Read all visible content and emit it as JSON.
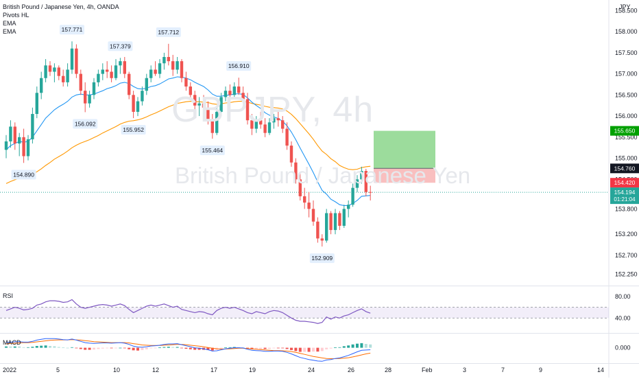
{
  "legend": {
    "title": "British Pound / Japanese Yen, 4h, OANDA",
    "indicators": [
      "Pivots HL",
      "EMA",
      "EMA"
    ]
  },
  "watermark": {
    "symbol": "GBPJPY, 4h",
    "description": "British Pound / Japanese Yen"
  },
  "symbol_badge": "JPY",
  "colors": {
    "up": "#26a69a",
    "down": "#ef5350",
    "ema_fast": "#2196f3",
    "ema_slow": "#ff9800",
    "rsi": "#7e57c2",
    "macd": "#2962ff",
    "signal": "#ff6d00",
    "target_zone": "#8bd68b",
    "stop_zone": "#f8b4b4"
  },
  "chart_data": {
    "type": "candlestick",
    "price_axis": {
      "ticks": [
        "158.500",
        "158.000",
        "157.500",
        "157.000",
        "156.500",
        "156.000",
        "155.500",
        "155.000",
        "154.500",
        "153.800",
        "153.200",
        "152.700",
        "152.250"
      ],
      "ylim": [
        152.0,
        158.75
      ]
    },
    "time_axis": {
      "labels": [
        "2022",
        "5",
        "10",
        "12",
        "17",
        "19",
        "24",
        "26",
        "28",
        "Feb",
        "3",
        "7",
        "9",
        "14"
      ]
    },
    "pivots": [
      {
        "label": "157.771",
        "type": "high"
      },
      {
        "label": "157.379",
        "type": "high"
      },
      {
        "label": "157.712",
        "type": "high"
      },
      {
        "label": "156.910",
        "type": "high"
      },
      {
        "label": "154.890",
        "type": "low"
      },
      {
        "label": "156.092",
        "type": "low"
      },
      {
        "label": "155.952",
        "type": "low"
      },
      {
        "label": "155.464",
        "type": "low"
      },
      {
        "label": "152.909",
        "type": "low"
      }
    ],
    "price_labels": [
      {
        "label": "155.650",
        "sub": "",
        "kind": "target",
        "color": "#00a000"
      },
      {
        "label": "154.760",
        "sub": "",
        "kind": "entry",
        "color": "#131722"
      },
      {
        "label": "154.420",
        "sub": "",
        "kind": "stop",
        "color": "#f23645"
      },
      {
        "label": "154.194",
        "sub": "01:21:04",
        "kind": "last",
        "color": "#26a69a"
      }
    ],
    "position": {
      "entry": 154.76,
      "target": 155.65,
      "stop": 154.42
    },
    "last_price": 154.194,
    "candles": [
      [
        155.2,
        155.55,
        155.0,
        155.4
      ],
      [
        155.4,
        155.9,
        155.25,
        155.75
      ],
      [
        155.75,
        155.85,
        155.2,
        155.35
      ],
      [
        155.35,
        155.6,
        155.05,
        155.5
      ],
      [
        155.5,
        155.7,
        154.89,
        155.05
      ],
      [
        155.05,
        155.55,
        154.95,
        155.45
      ],
      [
        155.45,
        156.2,
        155.35,
        156.05
      ],
      [
        156.05,
        156.7,
        155.95,
        156.55
      ],
      [
        156.55,
        157.05,
        156.4,
        156.9
      ],
      [
        156.9,
        157.35,
        156.8,
        157.2
      ],
      [
        157.2,
        157.3,
        156.95,
        157.05
      ],
      [
        157.05,
        157.25,
        156.8,
        157.15
      ],
      [
        157.15,
        157.2,
        156.85,
        156.95
      ],
      [
        156.95,
        157.1,
        156.7,
        156.8
      ],
      [
        156.8,
        157.25,
        156.7,
        157.1
      ],
      [
        157.1,
        157.771,
        157.0,
        157.6
      ],
      [
        157.6,
        157.7,
        156.9,
        157.0
      ],
      [
        157.0,
        157.1,
        156.5,
        156.6
      ],
      [
        156.6,
        156.8,
        156.092,
        156.3
      ],
      [
        156.3,
        156.6,
        156.2,
        156.5
      ],
      [
        156.5,
        156.9,
        156.4,
        156.8
      ],
      [
        156.8,
        157.1,
        156.7,
        157.0
      ],
      [
        157.0,
        157.25,
        156.85,
        157.1
      ],
      [
        157.1,
        157.3,
        156.9,
        157.05
      ],
      [
        157.05,
        157.2,
        156.8,
        156.9
      ],
      [
        156.9,
        157.35,
        156.85,
        157.2
      ],
      [
        157.2,
        157.379,
        157.0,
        157.3
      ],
      [
        157.3,
        157.4,
        156.9,
        157.0
      ],
      [
        157.0,
        157.05,
        156.4,
        156.5
      ],
      [
        156.5,
        156.6,
        155.952,
        156.1
      ],
      [
        156.1,
        156.45,
        156.0,
        156.35
      ],
      [
        156.35,
        156.7,
        156.25,
        156.6
      ],
      [
        156.6,
        157.0,
        156.5,
        156.9
      ],
      [
        156.9,
        157.2,
        156.8,
        157.1
      ],
      [
        157.1,
        157.3,
        156.95,
        157.0
      ],
      [
        157.0,
        157.35,
        156.9,
        157.25
      ],
      [
        157.25,
        157.5,
        157.1,
        157.4
      ],
      [
        157.4,
        157.712,
        157.2,
        157.3
      ],
      [
        157.3,
        157.45,
        156.95,
        157.1
      ],
      [
        157.1,
        157.4,
        157.0,
        157.3
      ],
      [
        157.3,
        157.35,
        156.8,
        156.9
      ],
      [
        156.9,
        157.05,
        156.6,
        156.7
      ],
      [
        156.7,
        156.8,
        156.4,
        156.5
      ],
      [
        156.5,
        156.6,
        156.1,
        156.25
      ],
      [
        156.25,
        156.45,
        156.0,
        156.3
      ],
      [
        156.3,
        156.5,
        156.05,
        156.2
      ],
      [
        156.2,
        156.35,
        155.8,
        155.9
      ],
      [
        155.9,
        156.05,
        155.464,
        155.6
      ],
      [
        155.6,
        156.2,
        155.55,
        156.1
      ],
      [
        156.1,
        156.55,
        156.0,
        156.45
      ],
      [
        156.45,
        156.7,
        156.35,
        156.6
      ],
      [
        156.6,
        156.75,
        156.4,
        156.5
      ],
      [
        156.5,
        156.8,
        156.45,
        156.7
      ],
      [
        156.7,
        156.91,
        156.5,
        156.55
      ],
      [
        156.55,
        156.7,
        156.3,
        156.4
      ],
      [
        156.4,
        156.55,
        155.8,
        155.9
      ],
      [
        155.9,
        156.05,
        155.55,
        155.7
      ],
      [
        155.7,
        156.0,
        155.6,
        155.9
      ],
      [
        155.9,
        156.1,
        155.7,
        155.8
      ],
      [
        155.8,
        155.95,
        155.5,
        155.6
      ],
      [
        155.6,
        155.95,
        155.55,
        155.85
      ],
      [
        155.85,
        156.05,
        155.7,
        155.95
      ],
      [
        155.95,
        156.1,
        155.75,
        155.9
      ],
      [
        155.9,
        156.0,
        155.6,
        155.7
      ],
      [
        155.7,
        155.85,
        155.2,
        155.3
      ],
      [
        155.3,
        155.4,
        154.8,
        154.9
      ],
      [
        154.9,
        155.0,
        154.4,
        154.5
      ],
      [
        154.5,
        154.65,
        154.0,
        154.1
      ],
      [
        154.1,
        154.3,
        153.8,
        153.95
      ],
      [
        153.95,
        154.2,
        153.6,
        153.8
      ],
      [
        153.8,
        154.0,
        153.4,
        153.5
      ],
      [
        153.5,
        153.6,
        153.0,
        153.1
      ],
      [
        153.1,
        153.2,
        152.909,
        153.05
      ],
      [
        153.05,
        153.8,
        153.0,
        153.7
      ],
      [
        153.7,
        153.75,
        153.2,
        153.3
      ],
      [
        153.3,
        153.8,
        153.2,
        153.7
      ],
      [
        153.7,
        153.75,
        153.3,
        153.4
      ],
      [
        153.4,
        153.9,
        153.35,
        153.8
      ],
      [
        153.8,
        154.0,
        153.6,
        153.9
      ],
      [
        153.9,
        154.4,
        153.85,
        154.3
      ],
      [
        154.3,
        154.6,
        154.2,
        154.5
      ],
      [
        154.5,
        154.8,
        154.4,
        154.7
      ],
      [
        154.7,
        154.75,
        154.1,
        154.2
      ],
      [
        154.2,
        154.35,
        154.0,
        154.194
      ]
    ],
    "ema_fast": [
      155.2,
      155.3,
      155.35,
      155.4,
      155.38,
      155.4,
      155.5,
      155.65,
      155.8,
      155.95,
      156.05,
      156.15,
      156.22,
      156.28,
      156.35,
      156.45,
      156.5,
      156.52,
      156.5,
      156.5,
      156.52,
      156.56,
      156.6,
      156.65,
      156.68,
      156.72,
      156.78,
      156.8,
      156.77,
      156.7,
      156.65,
      156.64,
      156.66,
      156.7,
      156.72,
      156.76,
      156.82,
      156.88,
      156.9,
      156.93,
      156.92,
      156.9,
      156.86,
      156.8,
      156.75,
      156.7,
      156.62,
      156.52,
      156.47,
      156.47,
      156.49,
      156.5,
      156.52,
      156.53,
      156.51,
      156.43,
      156.33,
      156.25,
      156.18,
      156.08,
      156.02,
      155.98,
      155.94,
      155.88,
      155.77,
      155.62,
      155.44,
      155.24,
      155.05,
      154.86,
      154.66,
      154.44,
      154.24,
      154.15,
      154.03,
      153.97,
      153.9,
      153.88,
      153.88,
      153.93,
      154.0,
      154.1,
      154.11,
      154.12
    ],
    "ema_slow": [
      154.4,
      154.45,
      154.49,
      154.53,
      154.55,
      154.58,
      154.62,
      154.68,
      154.75,
      154.83,
      154.9,
      154.98,
      155.04,
      155.1,
      155.17,
      155.25,
      155.31,
      155.36,
      155.4,
      155.44,
      155.49,
      155.54,
      155.6,
      155.65,
      155.7,
      155.75,
      155.81,
      155.85,
      155.88,
      155.89,
      155.91,
      155.94,
      155.98,
      156.03,
      156.07,
      156.12,
      156.17,
      156.22,
      156.26,
      156.3,
      156.32,
      156.34,
      156.35,
      156.34,
      156.34,
      156.33,
      156.32,
      156.29,
      156.28,
      156.29,
      156.31,
      156.32,
      156.34,
      156.35,
      156.35,
      156.33,
      156.3,
      156.28,
      156.26,
      156.23,
      156.21,
      156.2,
      156.19,
      156.17,
      156.12,
      156.04,
      155.94,
      155.82,
      155.7,
      155.58,
      155.45,
      155.3,
      155.17,
      155.09,
      154.99,
      154.92,
      154.83,
      154.78,
      154.74,
      154.73,
      154.74,
      154.78,
      154.8,
      154.81
    ],
    "rsi": {
      "label": "RSI",
      "ticks": [
        "80.00",
        "40.00"
      ],
      "band": [
        40,
        60
      ],
      "ylim": [
        15,
        95
      ],
      "values": [
        54,
        57,
        60,
        58,
        55,
        56,
        58,
        64,
        66,
        70,
        72,
        72,
        71,
        69,
        70,
        74,
        66,
        60,
        58,
        60,
        62,
        64,
        65,
        64,
        62,
        64,
        66,
        63,
        56,
        50,
        54,
        58,
        62,
        64,
        62,
        64,
        66,
        63,
        60,
        62,
        56,
        54,
        52,
        50,
        52,
        51,
        48,
        46,
        54,
        58,
        60,
        58,
        60,
        57,
        54,
        50,
        48,
        52,
        50,
        48,
        52,
        54,
        53,
        50,
        45,
        40,
        36,
        34,
        34,
        33,
        32,
        30,
        32,
        42,
        38,
        42,
        40,
        44,
        46,
        50,
        54,
        57,
        52,
        49
      ]
    },
    "macd": {
      "label": "MACD",
      "ticks": [
        "0.000"
      ],
      "ylim": [
        -0.55,
        0.5
      ],
      "macd": [
        0.2,
        0.22,
        0.23,
        0.24,
        0.22,
        0.22,
        0.25,
        0.3,
        0.33,
        0.36,
        0.36,
        0.36,
        0.34,
        0.32,
        0.31,
        0.34,
        0.3,
        0.25,
        0.2,
        0.18,
        0.17,
        0.18,
        0.19,
        0.19,
        0.18,
        0.19,
        0.2,
        0.18,
        0.13,
        0.06,
        0.03,
        0.02,
        0.04,
        0.07,
        0.08,
        0.1,
        0.13,
        0.15,
        0.15,
        0.16,
        0.12,
        0.08,
        0.04,
        0.0,
        -0.02,
        -0.04,
        -0.08,
        -0.13,
        -0.12,
        -0.08,
        -0.04,
        -0.02,
        0.0,
        0.0,
        -0.01,
        -0.06,
        -0.1,
        -0.11,
        -0.12,
        -0.14,
        -0.14,
        -0.13,
        -0.13,
        -0.14,
        -0.18,
        -0.24,
        -0.31,
        -0.38,
        -0.42,
        -0.46,
        -0.49,
        -0.52,
        -0.53,
        -0.48,
        -0.46,
        -0.42,
        -0.4,
        -0.35,
        -0.3,
        -0.23,
        -0.16,
        -0.1,
        -0.09,
        -0.08
      ],
      "signal": [
        0.15,
        0.17,
        0.18,
        0.19,
        0.2,
        0.2,
        0.21,
        0.23,
        0.25,
        0.27,
        0.29,
        0.3,
        0.31,
        0.31,
        0.31,
        0.32,
        0.31,
        0.3,
        0.28,
        0.26,
        0.24,
        0.23,
        0.22,
        0.21,
        0.2,
        0.2,
        0.2,
        0.2,
        0.19,
        0.16,
        0.14,
        0.11,
        0.1,
        0.09,
        0.09,
        0.09,
        0.1,
        0.11,
        0.12,
        0.13,
        0.13,
        0.12,
        0.1,
        0.08,
        0.06,
        0.04,
        0.01,
        -0.02,
        -0.04,
        -0.05,
        -0.05,
        -0.04,
        -0.03,
        -0.02,
        -0.02,
        -0.03,
        -0.04,
        -0.06,
        -0.07,
        -0.09,
        -0.1,
        -0.11,
        -0.11,
        -0.12,
        -0.13,
        -0.15,
        -0.18,
        -0.22,
        -0.26,
        -0.3,
        -0.34,
        -0.37,
        -0.4,
        -0.42,
        -0.43,
        -0.43,
        -0.42,
        -0.41,
        -0.39,
        -0.36,
        -0.32,
        -0.28,
        -0.24,
        -0.21
      ]
    }
  }
}
